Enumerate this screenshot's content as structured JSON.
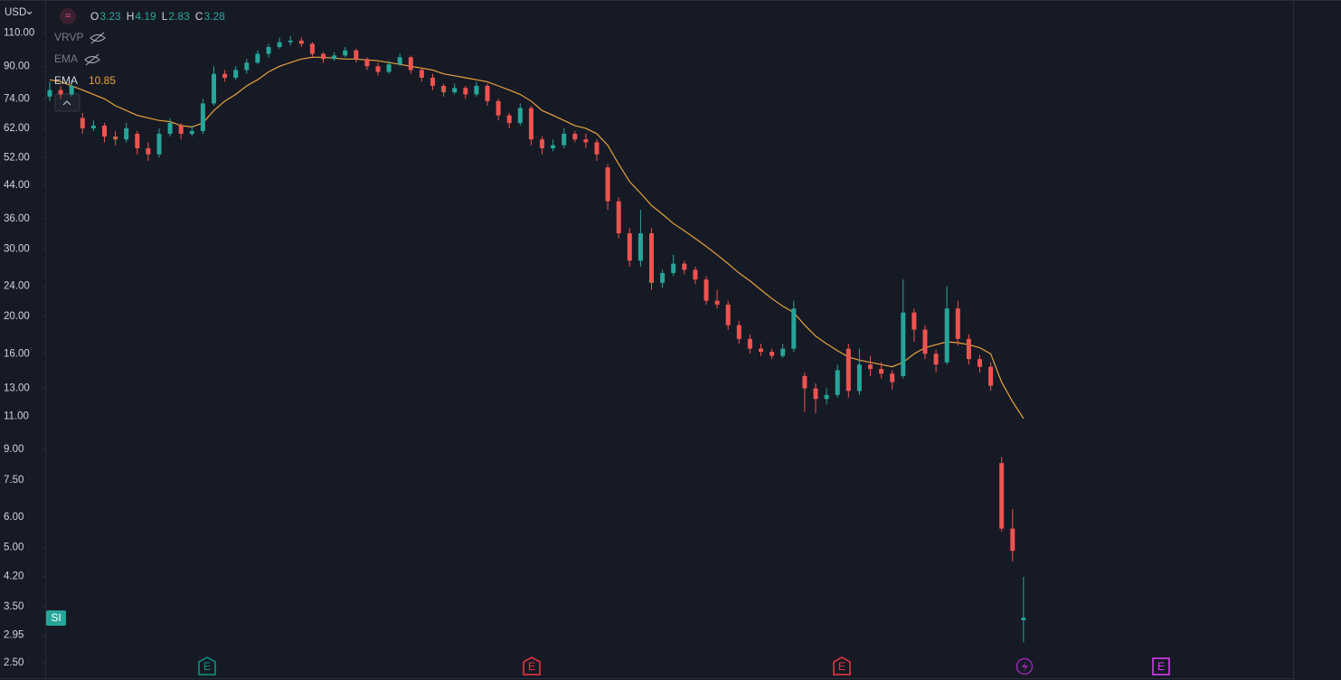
{
  "chart_data": {
    "type": "candlestick",
    "currency": "USD",
    "ohlc_labels": [
      "O",
      "H",
      "L",
      "C"
    ],
    "log_scale": true,
    "ylim": [
      2.28,
      134
    ],
    "yticks": [
      {
        "value": 110,
        "label": "110.00"
      },
      {
        "value": 90,
        "label": "90.00"
      },
      {
        "value": 74,
        "label": "74.00"
      },
      {
        "value": 62,
        "label": "62.00"
      },
      {
        "value": 52,
        "label": "52.00"
      },
      {
        "value": 44,
        "label": "44.00"
      },
      {
        "value": 36,
        "label": "36.00"
      },
      {
        "value": 30,
        "label": "30.00"
      },
      {
        "value": 24,
        "label": "24.00"
      },
      {
        "value": 20,
        "label": "20.00"
      },
      {
        "value": 16,
        "label": "16.00"
      },
      {
        "value": 13,
        "label": "13.00"
      },
      {
        "value": 11,
        "label": "11.00"
      },
      {
        "value": 9,
        "label": "9.00"
      },
      {
        "value": 7.5,
        "label": "7.50"
      },
      {
        "value": 6,
        "label": "6.00"
      },
      {
        "value": 5,
        "label": "5.00"
      },
      {
        "value": 4.2,
        "label": "4.20"
      },
      {
        "value": 3.5,
        "label": "3.50"
      },
      {
        "value": 2.95,
        "label": "2.95"
      },
      {
        "value": 2.5,
        "label": "2.50"
      }
    ],
    "up_color": "#26a69a",
    "down_color": "#ef5350",
    "open": [
      75,
      78,
      76,
      66,
      62,
      63,
      59,
      58,
      60,
      55,
      53,
      60,
      63,
      60,
      61,
      72,
      86,
      84,
      88,
      92,
      97,
      101,
      104,
      105,
      103,
      97,
      94,
      96,
      99,
      94,
      90,
      87,
      91,
      95,
      88,
      84,
      80,
      77,
      79,
      76,
      80,
      73,
      67,
      64,
      70,
      58,
      55,
      56,
      60,
      58,
      57,
      49,
      40,
      33,
      28,
      33,
      24.5,
      26,
      27.5,
      26.5,
      25,
      22,
      21.5,
      19,
      17.5,
      16.5,
      16.2,
      15.8,
      16.5,
      14,
      13,
      12.2,
      12.5,
      16.5,
      12.8,
      15,
      14.6,
      14.2,
      14,
      20.5,
      18.5,
      16,
      15.2,
      21,
      17.5,
      15.5,
      14.8,
      8.3,
      5.6,
      3.23
    ],
    "high": [
      82,
      80,
      83,
      68,
      65,
      64,
      61,
      64,
      61,
      57,
      62,
      66,
      64,
      63,
      74,
      90,
      88,
      90,
      94,
      99,
      103,
      107,
      108,
      107,
      104,
      98,
      98,
      101,
      100,
      95,
      92,
      93,
      97,
      96,
      89,
      86,
      81,
      81,
      80,
      82,
      81,
      74,
      68,
      72,
      71,
      59,
      58,
      62,
      61,
      60,
      58,
      50,
      41,
      34,
      38,
      34,
      26.5,
      29,
      28,
      27,
      25.5,
      23.5,
      22,
      19.5,
      18,
      17,
      16.5,
      17,
      22,
      14.3,
      13.4,
      13,
      15,
      17,
      16.5,
      15.8,
      15.2,
      14.5,
      25,
      21,
      19,
      16.4,
      24,
      22,
      18,
      15.9,
      15.2,
      8.6,
      6.3,
      4.19
    ],
    "low": [
      73,
      74,
      75,
      60,
      61,
      57,
      56,
      57,
      53,
      51,
      52,
      59,
      58,
      59,
      60,
      71,
      82,
      83,
      86,
      91,
      95,
      100,
      102,
      101,
      95,
      92,
      93,
      95,
      92,
      88,
      85,
      86,
      90,
      86,
      82,
      78,
      75,
      76,
      74,
      75,
      71,
      65,
      62,
      63,
      56,
      53,
      54,
      55,
      57,
      55,
      51,
      38,
      32,
      27,
      27,
      23.5,
      23.8,
      25.5,
      25.8,
      24.3,
      21.5,
      21,
      18.5,
      17,
      16,
      15.8,
      15.5,
      15.6,
      16.2,
      11.3,
      11.2,
      11.8,
      12.3,
      12.3,
      12.5,
      14,
      13.8,
      12.9,
      13.8,
      17.2,
      15.5,
      14.3,
      15,
      16.8,
      15,
      14.3,
      12.8,
      5.5,
      4.6,
      2.83
    ],
    "close": [
      78,
      76,
      80,
      62,
      63,
      59,
      58,
      62,
      55,
      53,
      60,
      64,
      60,
      61,
      72,
      86,
      84,
      88,
      92,
      97,
      101,
      104,
      105,
      103,
      97,
      94,
      96,
      99,
      94,
      90,
      87,
      91,
      95,
      88,
      84,
      80,
      77,
      79,
      76,
      80,
      73,
      67,
      64,
      70,
      58,
      55,
      56,
      60,
      58,
      57,
      53,
      40,
      33,
      28,
      33,
      24.5,
      26,
      27.5,
      26.5,
      25,
      22,
      21.5,
      19,
      17.5,
      16.5,
      16.2,
      15.8,
      16.5,
      21,
      13,
      12.2,
      12.5,
      14.5,
      12.8,
      15,
      14.6,
      14.2,
      13.5,
      20.5,
      18.5,
      16,
      15,
      21,
      17.5,
      15.5,
      14.8,
      13.2,
      5.6,
      4.9,
      3.28
    ],
    "indicators": [
      "VRVP",
      "EMA"
    ],
    "ema": {
      "name": "EMA",
      "color": "#e8a33c",
      "values": [
        83,
        82,
        80,
        78,
        76,
        74,
        71,
        69,
        67,
        66,
        65,
        64.5,
        63,
        62.5,
        64,
        69,
        73,
        76,
        80,
        83,
        87,
        90,
        92,
        94,
        95,
        95,
        94.5,
        94,
        94,
        93.5,
        93,
        92,
        91,
        90,
        89,
        88,
        86,
        85,
        84,
        83,
        82,
        80,
        78,
        76,
        73,
        69,
        67,
        65,
        63,
        62,
        60,
        56,
        50,
        45,
        42,
        39,
        37,
        35,
        33.5,
        32,
        30.5,
        29,
        27.5,
        26,
        24.8,
        23.5,
        22.3,
        21.3,
        20.5,
        19,
        17.8,
        17,
        16.3,
        15.7,
        15.4,
        15.2,
        15,
        14.8,
        15.2,
        16,
        16.6,
        16.9,
        17.2,
        17.1,
        16.9,
        16.6,
        16,
        13.5,
        12,
        10.85
      ]
    },
    "events": [
      {
        "label": "E",
        "color": "#089981"
      },
      {
        "label": "E",
        "color": "#f23645"
      },
      {
        "label": "E",
        "color": "#f23645"
      },
      {
        "label": "E",
        "color": "#e040fb"
      }
    ],
    "badge": "SI"
  }
}
